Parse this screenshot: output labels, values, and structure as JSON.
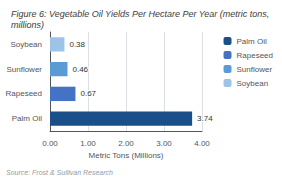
{
  "chart_data": {
    "type": "bar",
    "orientation": "horizontal",
    "title": "Figure 6: Vegetable Oil Yields Per Hectare Per Year (metric tons, millions)",
    "categories": [
      "Palm Oil",
      "Rapeseed",
      "Sunflower",
      "Soybean"
    ],
    "values": [
      3.74,
      0.67,
      0.46,
      0.38
    ],
    "colors": [
      "#1a4f8a",
      "#4472c4",
      "#5b9bd5",
      "#9dc3e6"
    ],
    "xlabel": "Metric Tons (Millions)",
    "xlim": [
      0,
      4.0
    ],
    "xticks": [
      {
        "value": 0,
        "label": "0.00"
      },
      {
        "value": 1,
        "label": "1.00"
      },
      {
        "value": 2,
        "label": "2.00"
      },
      {
        "value": 3,
        "label": "3.00"
      },
      {
        "value": 4,
        "label": "4.00"
      }
    ],
    "data_labels": true,
    "grid": true,
    "legend": "right",
    "annotations": [
      "Source: Frost & Sullivan Research"
    ]
  }
}
